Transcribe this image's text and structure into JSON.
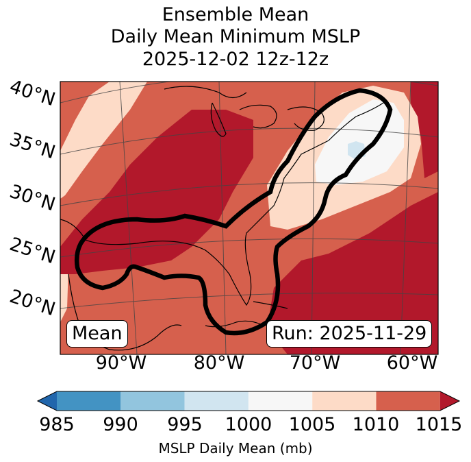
{
  "title": {
    "line1": "Ensemble Mean",
    "line2": "Daily Mean Minimum MSLP",
    "line3": "2025-12-02 12z-12z"
  },
  "map": {
    "lat_labels": [
      "40°N",
      "35°N",
      "30°N",
      "25°N",
      "20°N"
    ],
    "lon_labels": [
      "90°W",
      "80°W",
      "70°W",
      "60°W"
    ],
    "mean_label": "Mean",
    "run_label": "Run: 2025-11-29"
  },
  "colorbar": {
    "ticks": [
      "985",
      "990",
      "995",
      "1000",
      "1005",
      "1010",
      "1015"
    ],
    "label": "MSLP Daily Mean (mb)",
    "colors": [
      "#2166ac",
      "#4393c3",
      "#92c5de",
      "#d1e5f0",
      "#f7f7f7",
      "#fddbc7",
      "#d6604d",
      "#b2182b"
    ]
  }
}
